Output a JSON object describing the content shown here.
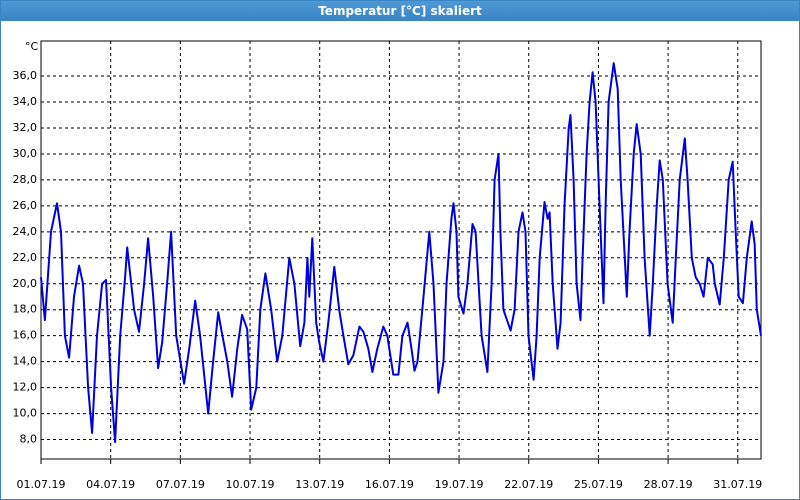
{
  "window_title": "Temperatur [°C] skaliert",
  "chart_data": {
    "type": "line",
    "y_unit": "°C",
    "color": "#0000dd",
    "grid": true,
    "xlim": [
      0,
      31
    ],
    "ylim": [
      6.5,
      38.7
    ],
    "xticks": [
      {
        "value": 0,
        "label": "01.07.19"
      },
      {
        "value": 3,
        "label": "04.07.19"
      },
      {
        "value": 6,
        "label": "07.07.19"
      },
      {
        "value": 9,
        "label": "10.07.19"
      },
      {
        "value": 12,
        "label": "13.07.19"
      },
      {
        "value": 15,
        "label": "16.07.19"
      },
      {
        "value": 18,
        "label": "19.07.19"
      },
      {
        "value": 21,
        "label": "22.07.19"
      },
      {
        "value": 24,
        "label": "25.07.19"
      },
      {
        "value": 27,
        "label": "28.07.19"
      },
      {
        "value": 30,
        "label": "31.07.19"
      }
    ],
    "yticks": [
      {
        "value": 8,
        "label": "8,0"
      },
      {
        "value": 10,
        "label": "10,0"
      },
      {
        "value": 12,
        "label": "12,0"
      },
      {
        "value": 14,
        "label": "14,0"
      },
      {
        "value": 16,
        "label": "16,0"
      },
      {
        "value": 18,
        "label": "18,0"
      },
      {
        "value": 20,
        "label": "20,0"
      },
      {
        "value": 22,
        "label": "22,0"
      },
      {
        "value": 24,
        "label": "24,0"
      },
      {
        "value": 26,
        "label": "26,0"
      },
      {
        "value": 28,
        "label": "28,0"
      },
      {
        "value": 30,
        "label": "30,0"
      },
      {
        "value": 32,
        "label": "32,0"
      },
      {
        "value": 34,
        "label": "34,0"
      },
      {
        "value": 36,
        "label": "36,0"
      }
    ],
    "x": [
      0,
      0.17,
      0.43,
      0.69,
      0.86,
      1.03,
      1.21,
      1.42,
      1.64,
      1.81,
      2.03,
      2.2,
      2.41,
      2.63,
      2.8,
      3.02,
      3.19,
      3.41,
      3.62,
      3.71,
      4.01,
      4.22,
      4.44,
      4.61,
      4.83,
      5.04,
      5.22,
      5.43,
      5.6,
      5.82,
      6.16,
      6.38,
      6.64,
      6.85,
      7.2,
      7.41,
      7.63,
      7.76,
      8.02,
      8.23,
      8.45,
      8.66,
      8.88,
      9.05,
      9.27,
      9.44,
      9.66,
      9.91,
      10.17,
      10.39,
      10.69,
      10.91,
      11.16,
      11.34,
      11.47,
      11.55,
      11.68,
      11.85,
      11.98,
      12.16,
      12.37,
      12.63,
      12.84,
      13.02,
      13.23,
      13.45,
      13.71,
      13.88,
      14.09,
      14.27,
      14.48,
      14.74,
      14.91,
      15.17,
      15.39,
      15.56,
      15.78,
      15.95,
      16.08,
      16.21,
      16.47,
      16.72,
      16.9,
      17.11,
      17.33,
      17.46,
      17.67,
      17.76,
      17.89,
      17.97,
      18.19,
      18.36,
      18.58,
      18.71,
      18.97,
      19.22,
      19.4,
      19.53,
      19.7,
      19.78,
      19.91,
      20.22,
      20.39,
      20.56,
      20.73,
      20.86,
      20.99,
      21.21,
      21.34,
      21.47,
      21.68,
      21.81,
      21.9,
      22.03,
      22.24,
      22.37,
      22.54,
      22.72,
      22.8,
      22.93,
      23.06,
      23.23,
      23.32,
      23.49,
      23.62,
      23.75,
      23.88,
      24.05,
      24.22,
      24.31,
      24.44,
      24.66,
      24.83,
      24.96,
      25.22,
      25.34,
      25.52,
      25.65,
      25.82,
      25.99,
      26.21,
      26.34,
      26.51,
      26.64,
      26.77,
      26.98,
      27.2,
      27.33,
      27.5,
      27.72,
      27.84,
      28.02,
      28.19,
      28.36,
      28.53,
      28.71,
      28.92,
      29.01,
      29.22,
      29.4,
      29.61,
      29.78,
      29.91,
      30.04,
      30.22,
      30.39,
      30.6,
      30.73,
      30.82,
      31
    ],
    "series": [
      {
        "values": [
          20.5,
          17.2,
          24,
          26.2,
          24,
          16,
          14.3,
          19,
          21.4,
          20,
          12,
          8.5,
          16,
          20,
          20.3,
          12,
          7.8,
          16,
          20.5,
          22.8,
          18,
          16.3,
          20,
          23.5,
          19,
          13.5,
          15.5,
          20,
          24,
          16,
          12.3,
          15,
          18.7,
          16,
          10,
          14,
          17.8,
          16.5,
          14,
          11.3,
          15,
          17.6,
          16.5,
          10.3,
          12,
          18,
          20.8,
          18,
          14,
          16,
          22,
          20,
          15.2,
          17,
          22,
          19,
          23.5,
          17,
          15.5,
          14,
          17,
          21.3,
          18,
          16,
          13.8,
          14.5,
          16.7,
          16.3,
          15,
          13.2,
          15,
          16.7,
          16,
          13,
          13,
          16,
          17,
          15,
          13.3,
          14,
          19,
          24,
          20,
          11.6,
          14,
          20,
          25,
          26.2,
          24,
          19,
          17.7,
          20,
          24.6,
          24,
          16,
          13.2,
          20,
          28,
          30,
          24,
          18,
          16.4,
          18,
          24,
          25.5,
          24,
          16,
          12.6,
          16,
          22,
          26.3,
          25,
          25.5,
          20,
          15,
          17,
          26,
          32,
          33,
          28,
          20,
          17.2,
          22,
          30,
          34,
          36.3,
          34,
          26,
          18.5,
          26,
          34,
          37,
          35,
          28,
          19,
          24,
          30,
          32.3,
          30,
          22,
          16,
          20,
          26,
          29.5,
          28,
          20,
          17,
          22,
          28,
          31.2,
          28,
          22,
          20.5,
          20,
          19,
          22,
          21.5,
          20,
          18.4,
          22,
          28,
          29.4,
          24,
          19,
          18.5,
          22,
          24.8,
          23,
          18,
          16
        ]
      }
    ]
  }
}
